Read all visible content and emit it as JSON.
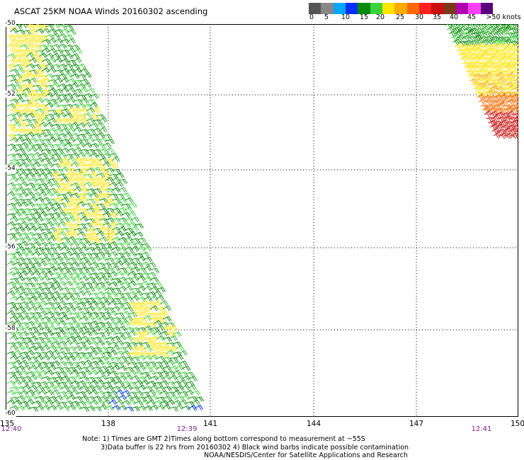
{
  "title": "ASCAT 25KM NOAA Winds 20160302 ascending",
  "legend": {
    "colors": [
      "#555555",
      "#888888",
      "#00a8ff",
      "#0030ff",
      "#0a8a0a",
      "#3cd23c",
      "#ffe400",
      "#ffaa00",
      "#ff6a00",
      "#ff2020",
      "#c81010",
      "#7a3a1a",
      "#b000b0",
      "#ff40ff",
      "#5a007a"
    ],
    "labels": [
      "0",
      "5",
      "10",
      "15",
      "20",
      "25",
      "30",
      "35",
      "40",
      "45",
      ">50 knots"
    ]
  },
  "map": {
    "lat_labels": [
      "-50",
      "-52",
      "-54",
      "-56",
      "-58",
      "-60"
    ],
    "lon_labels": [
      "135",
      "138",
      "141",
      "144",
      "147",
      "150"
    ],
    "time_labels": [
      "12:40",
      "12:39",
      "12:41"
    ],
    "swath_left": {
      "times": "12:40 to 12:39",
      "speed_knots_min": 10,
      "speed_knots_max": 25,
      "dominant_color": "green",
      "secondary_color": "yellow"
    },
    "swath_right": {
      "times": "12:41",
      "speed_knots_min": 15,
      "speed_knots_max": 35,
      "colors_north_to_south": [
        "green",
        "yellow",
        "orange",
        "red"
      ]
    }
  },
  "notes": {
    "line1": "Note: 1) Times are GMT 2)Times along bottom correspond to measurement at ~55S",
    "line2": "3)Data buffer is 22 hrs from 20160302 4) Black wind barbs indicate possible contamination",
    "line3": "NOAA/NESDIS/Center for Satellite Applications and Research"
  }
}
